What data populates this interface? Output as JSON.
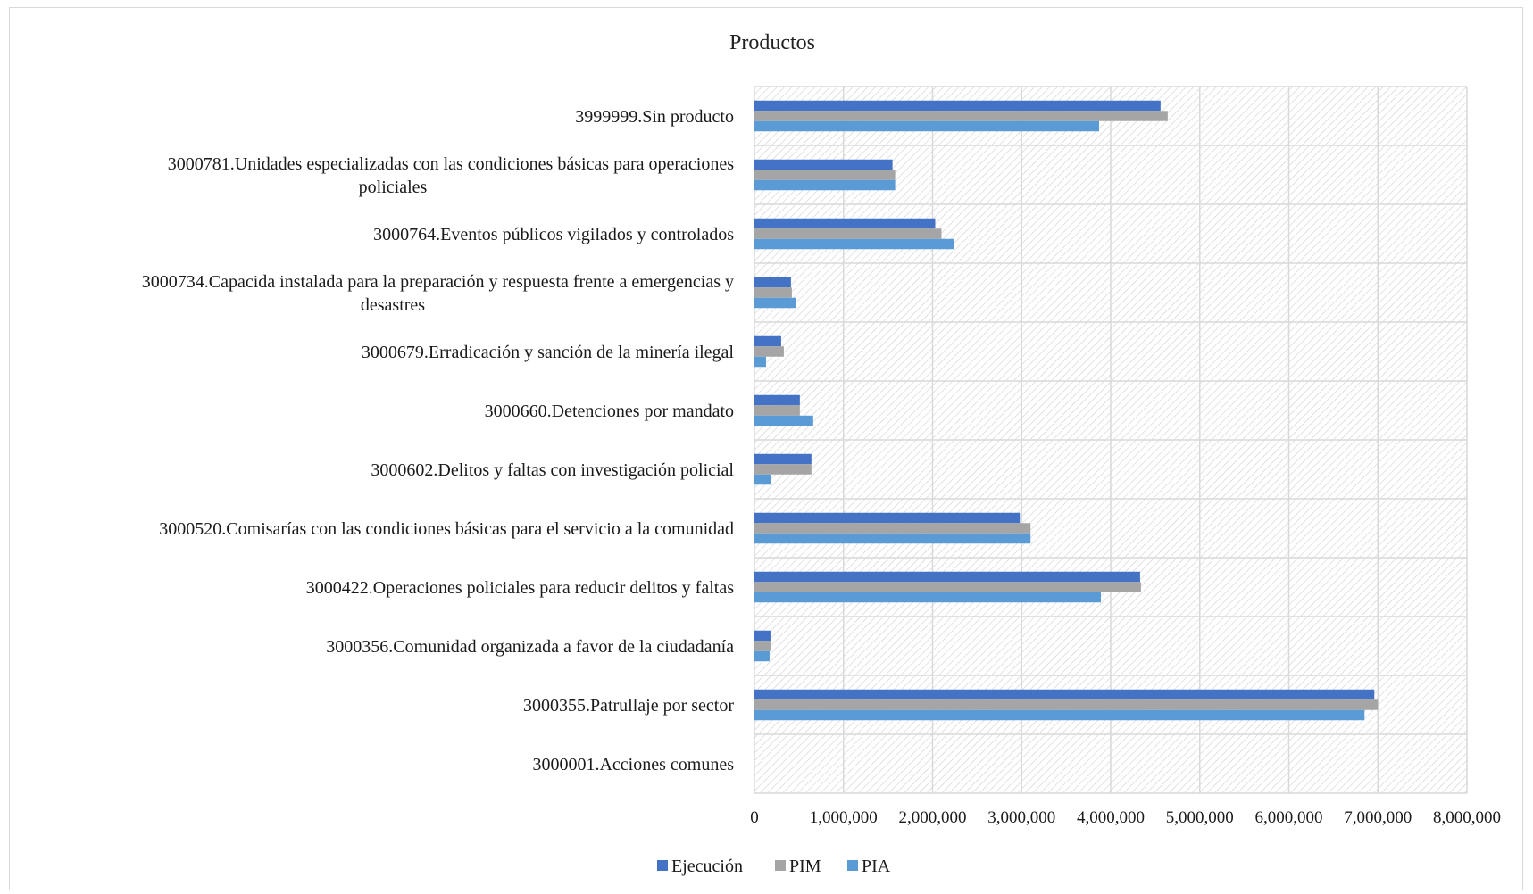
{
  "chart_data": {
    "type": "bar",
    "orientation": "horizontal",
    "title": "Productos",
    "xlabel": "",
    "ylabel": "",
    "xlim": [
      0,
      8000000
    ],
    "xticks": [
      0,
      1000000,
      2000000,
      3000000,
      4000000,
      5000000,
      6000000,
      7000000,
      8000000
    ],
    "xtick_labels": [
      "0",
      "1,000,000",
      "2,000,000",
      "3,000,000",
      "4,000,000",
      "5,000,000",
      "6,000,000",
      "7,000,000",
      "8,000,000"
    ],
    "grid": true,
    "legend_position": "bottom",
    "categories": [
      [
        "3999999.Sin producto"
      ],
      [
        "3000781.Unidades especializadas con las condiciones básicas para operaciones",
        "policiales"
      ],
      [
        "3000764.Eventos públicos vigilados y controlados"
      ],
      [
        "3000734.Capacida instalada para la preparación y respuesta frente a emergencias y",
        "desastres"
      ],
      [
        "3000679.Erradicación y sanción de la minería ilegal"
      ],
      [
        "3000660.Detenciones por mandato"
      ],
      [
        "3000602.Delitos y faltas con investigación policial"
      ],
      [
        "3000520.Comisarías con las condiciones básicas para el servicio a la comunidad"
      ],
      [
        "3000422.Operaciones policiales para reducir delitos y faltas"
      ],
      [
        "3000356.Comunidad organizada a favor de la ciudadanía"
      ],
      [
        "3000355.Patrullaje por sector"
      ],
      [
        "3000001.Acciones comunes"
      ]
    ],
    "series": [
      {
        "name": "Ejecución",
        "color": "#4472c4",
        "values": [
          4560000,
          1550000,
          2030000,
          410000,
          300000,
          510000,
          640000,
          2980000,
          4330000,
          180000,
          6960000,
          0
        ]
      },
      {
        "name": "PIM",
        "color": "#a5a5a5",
        "values": [
          4640000,
          1580000,
          2100000,
          420000,
          330000,
          510000,
          640000,
          3100000,
          4340000,
          180000,
          7000000,
          0
        ]
      },
      {
        "name": "PIA",
        "color": "#5b9bd5",
        "values": [
          3870000,
          1580000,
          2240000,
          470000,
          130000,
          660000,
          190000,
          3100000,
          3890000,
          170000,
          6850000,
          0
        ]
      }
    ]
  }
}
